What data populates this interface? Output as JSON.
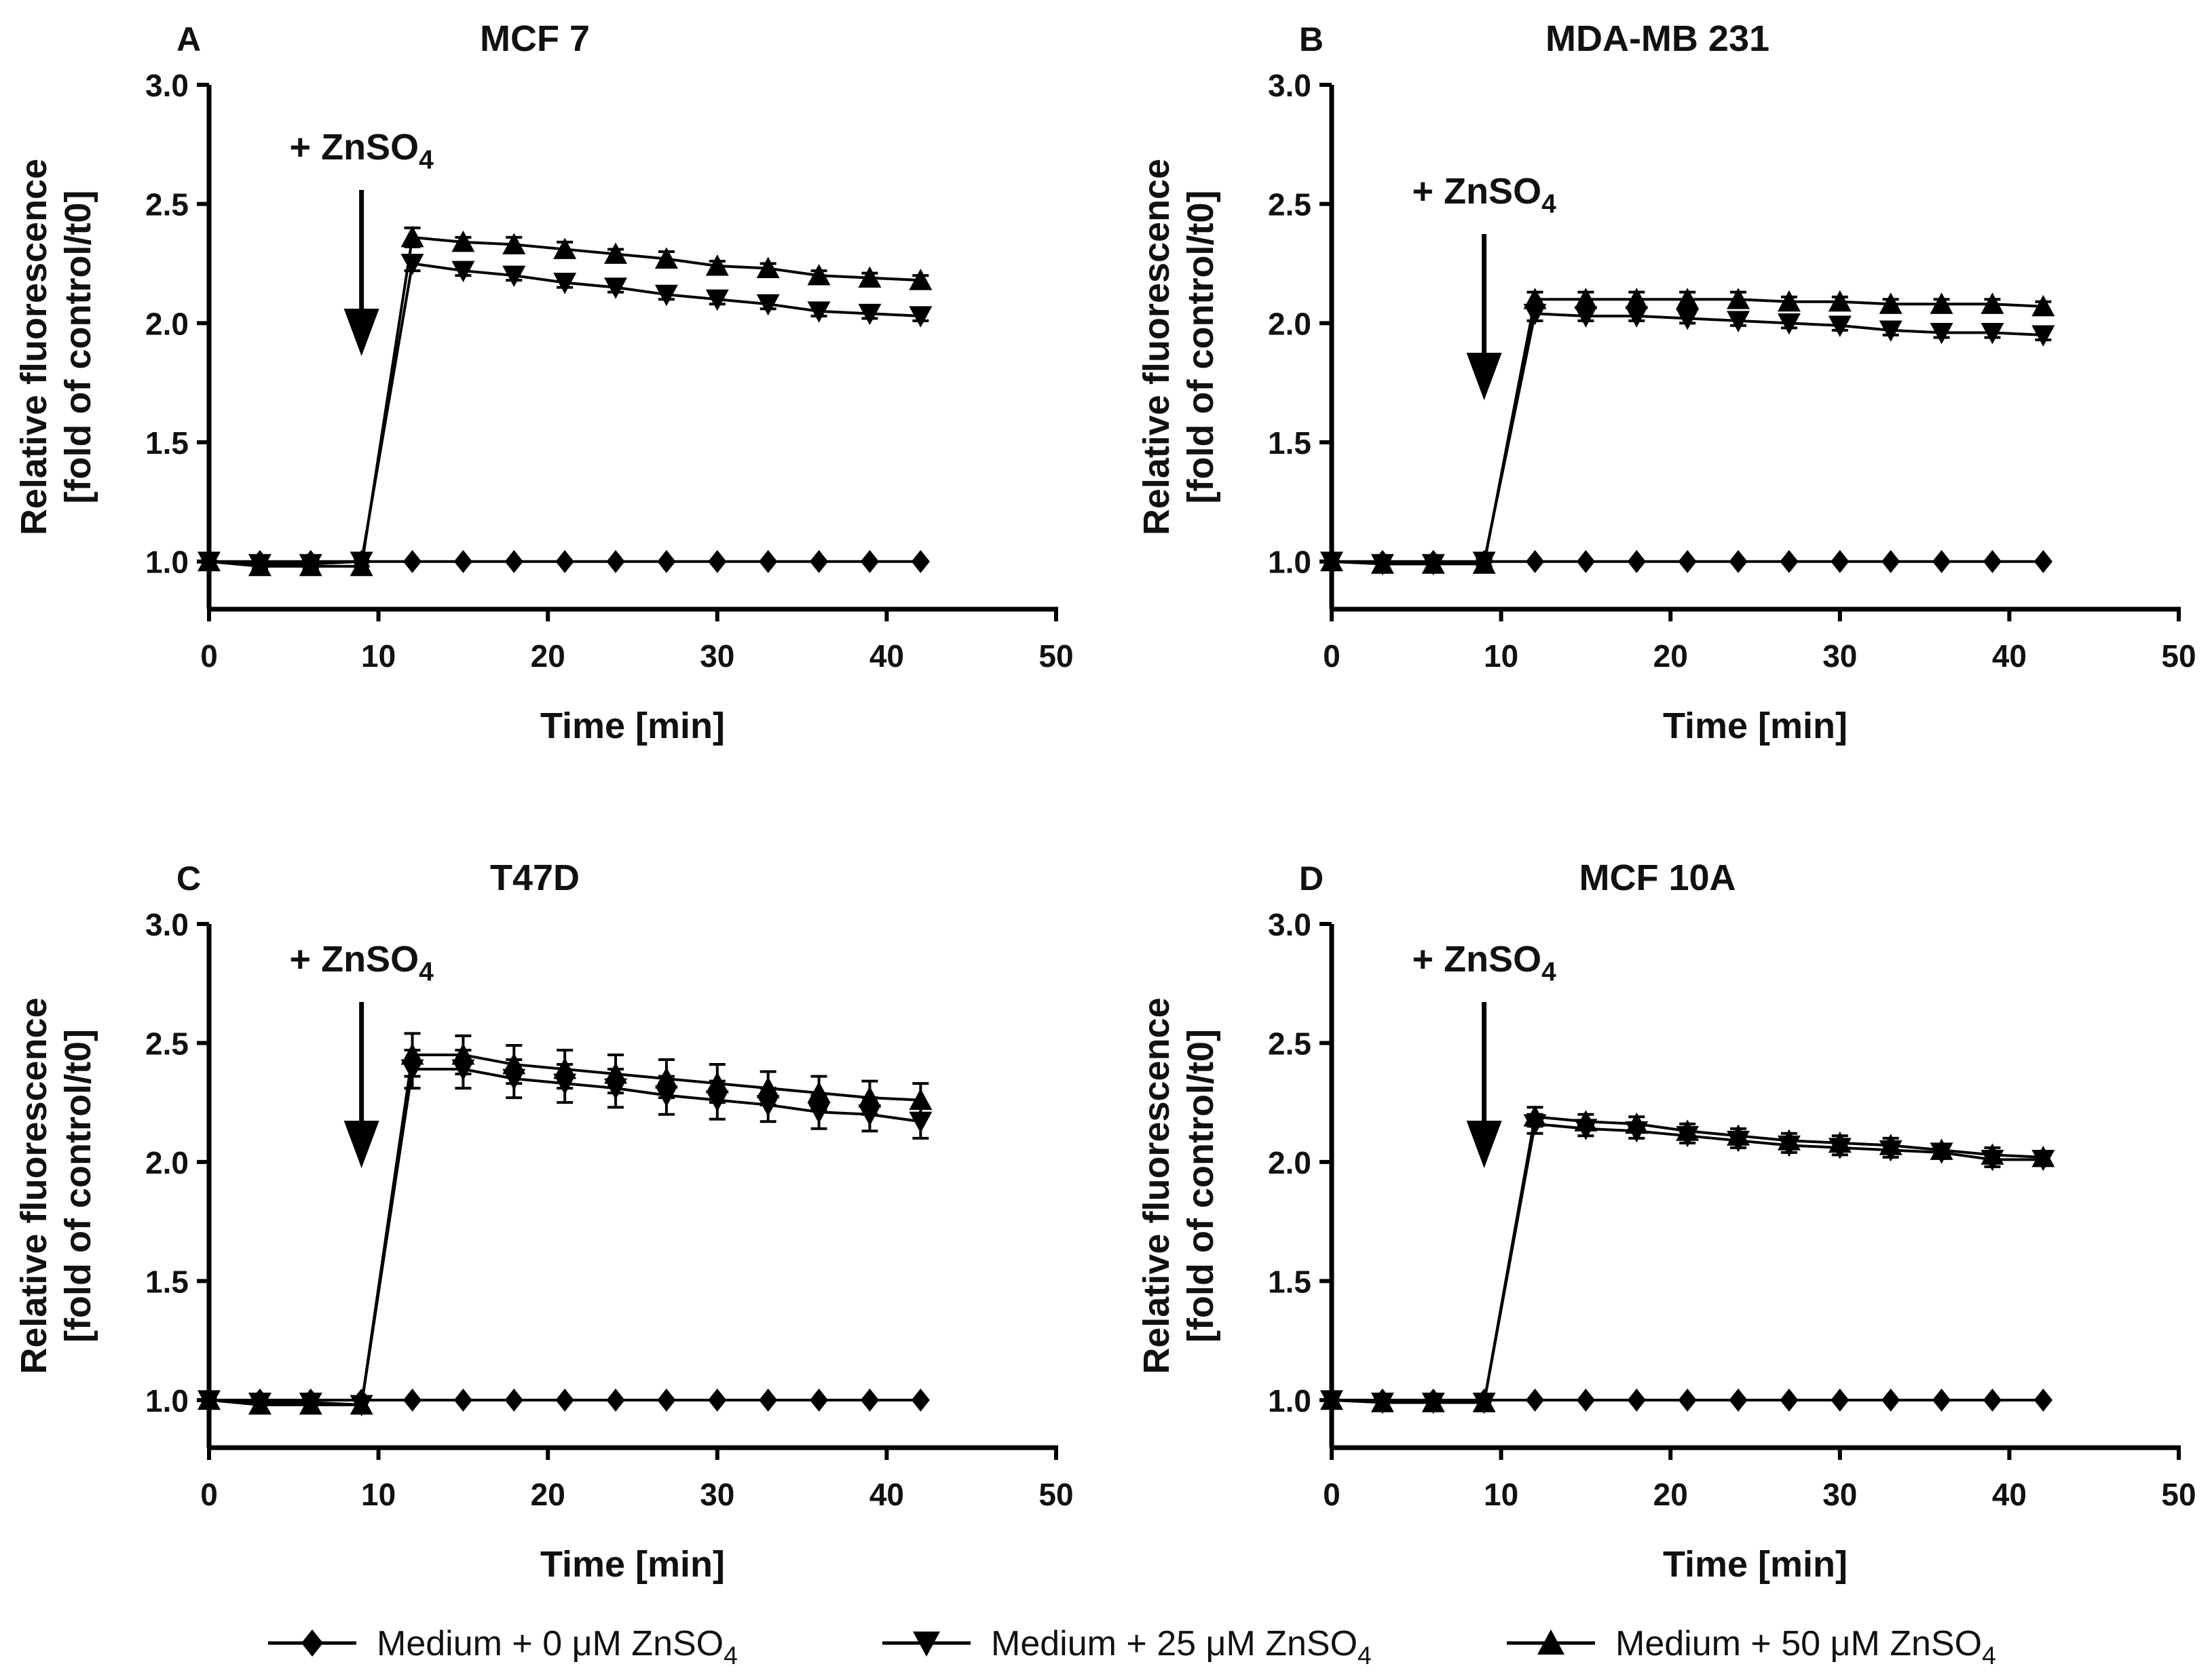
{
  "figure": {
    "time_points": [
      0,
      3,
      6,
      9,
      12,
      15,
      18,
      21,
      24,
      27,
      30,
      33,
      36,
      39,
      42
    ],
    "legend": [
      {
        "label": "Medium + 0 μM ZnSO",
        "sub": "4",
        "marker": "diamond"
      },
      {
        "label": "Medium + 25 μM ZnSO",
        "sub": "4",
        "marker": "triangle-down"
      },
      {
        "label": "Medium + 50 μM ZnSO",
        "sub": "4",
        "marker": "triangle-up"
      }
    ]
  },
  "chart_data": [
    {
      "type": "line",
      "panel": "A",
      "title": "MCF 7",
      "xlabel": "Time [min]",
      "ylabel_line1": "Relative fluorescence",
      "ylabel_line2": "[fold of control/t0]",
      "xlim": [
        0,
        50
      ],
      "ylim": [
        0.8,
        3.0
      ],
      "xticks": [
        "0",
        "10",
        "20",
        "30",
        "40",
        "50"
      ],
      "yticks": [
        "1.0",
        "1.5",
        "2.0",
        "2.5",
        "3.0"
      ],
      "annotation": {
        "text": "+ ZnSO",
        "sub": "4",
        "x": 9
      },
      "series": [
        {
          "name": "Medium + 0 μM ZnSO4",
          "marker": "diamond",
          "values": [
            1.0,
            1.0,
            1.0,
            1.0,
            1.0,
            1.0,
            1.0,
            1.0,
            1.0,
            1.0,
            1.0,
            1.0,
            1.0,
            1.0,
            1.0
          ],
          "errors": [
            0,
            0,
            0,
            0,
            0,
            0,
            0,
            0,
            0,
            0,
            0,
            0,
            0,
            0,
            0
          ]
        },
        {
          "name": "Medium + 25 μM ZnSO4",
          "marker": "triangle-down",
          "values": [
            1.0,
            0.99,
            0.99,
            1.0,
            2.25,
            2.22,
            2.2,
            2.17,
            2.15,
            2.12,
            2.1,
            2.08,
            2.05,
            2.04,
            2.03
          ],
          "errors": [
            0,
            0.02,
            0.02,
            0.02,
            0.03,
            0.02,
            0.02,
            0.02,
            0.02,
            0.02,
            0.02,
            0.02,
            0.02,
            0.02,
            0.02
          ]
        },
        {
          "name": "Medium + 50 μM ZnSO4",
          "marker": "triangle-up",
          "values": [
            1.0,
            0.98,
            0.98,
            0.98,
            2.36,
            2.34,
            2.33,
            2.31,
            2.29,
            2.27,
            2.24,
            2.23,
            2.2,
            2.19,
            2.18
          ],
          "errors": [
            0,
            0.02,
            0.02,
            0.02,
            0.04,
            0.02,
            0.03,
            0.03,
            0.02,
            0.03,
            0.02,
            0.02,
            0.02,
            0.02,
            0.02
          ]
        }
      ]
    },
    {
      "type": "line",
      "panel": "B",
      "title": "MDA-MB 231",
      "xlabel": "Time [min]",
      "ylabel_line1": "Relative fluorescence",
      "ylabel_line2": "[fold of control/t0]",
      "xlim": [
        0,
        50
      ],
      "ylim": [
        0.8,
        3.0
      ],
      "xticks": [
        "0",
        "10",
        "20",
        "30",
        "40",
        "50"
      ],
      "yticks": [
        "1.0",
        "1.5",
        "2.0",
        "2.5",
        "3.0"
      ],
      "annotation": {
        "text": "+ ZnSO",
        "sub": "4",
        "x": 9
      },
      "series": [
        {
          "name": "Medium + 0 μM ZnSO4",
          "marker": "diamond",
          "values": [
            1.0,
            1.0,
            1.0,
            1.0,
            1.0,
            1.0,
            1.0,
            1.0,
            1.0,
            1.0,
            1.0,
            1.0,
            1.0,
            1.0,
            1.0
          ],
          "errors": [
            0,
            0,
            0,
            0,
            0,
            0,
            0,
            0,
            0,
            0,
            0,
            0,
            0,
            0,
            0
          ]
        },
        {
          "name": "Medium + 25 μM ZnSO4",
          "marker": "triangle-down",
          "values": [
            1.0,
            0.99,
            0.99,
            1.0,
            2.04,
            2.03,
            2.03,
            2.02,
            2.01,
            2.0,
            1.99,
            1.97,
            1.96,
            1.96,
            1.95
          ],
          "errors": [
            0,
            0.02,
            0.02,
            0.02,
            0.03,
            0.02,
            0.02,
            0.02,
            0.02,
            0.02,
            0.02,
            0.02,
            0.02,
            0.02,
            0.02
          ]
        },
        {
          "name": "Medium + 50 μM ZnSO4",
          "marker": "triangle-up",
          "values": [
            1.0,
            0.99,
            0.99,
            0.99,
            2.1,
            2.1,
            2.1,
            2.1,
            2.1,
            2.09,
            2.09,
            2.08,
            2.08,
            2.08,
            2.07
          ],
          "errors": [
            0,
            0.02,
            0.02,
            0.02,
            0.03,
            0.03,
            0.03,
            0.03,
            0.03,
            0.02,
            0.02,
            0.02,
            0.02,
            0.02,
            0.02
          ]
        }
      ]
    },
    {
      "type": "line",
      "panel": "C",
      "title": "T47D",
      "xlabel": "Time [min]",
      "ylabel_line1": "Relative fluorescence",
      "ylabel_line2": "[fold of control/t0]",
      "xlim": [
        0,
        50
      ],
      "ylim": [
        0.8,
        3.0
      ],
      "xticks": [
        "0",
        "10",
        "20",
        "30",
        "40",
        "50"
      ],
      "yticks": [
        "1.0",
        "1.5",
        "2.0",
        "2.5",
        "3.0"
      ],
      "annotation": {
        "text": "+ ZnSO",
        "sub": "4",
        "x": 9
      },
      "series": [
        {
          "name": "Medium + 0 μM ZnSO4",
          "marker": "diamond",
          "values": [
            1.0,
            1.0,
            1.0,
            1.0,
            1.0,
            1.0,
            1.0,
            1.0,
            1.0,
            1.0,
            1.0,
            1.0,
            1.0,
            1.0,
            1.0
          ],
          "errors": [
            0,
            0,
            0,
            0,
            0,
            0,
            0,
            0,
            0,
            0,
            0,
            0,
            0,
            0,
            0
          ]
        },
        {
          "name": "Medium + 25 μM ZnSO4",
          "marker": "triangle-down",
          "values": [
            1.0,
            0.99,
            0.99,
            0.98,
            2.39,
            2.39,
            2.35,
            2.33,
            2.31,
            2.28,
            2.26,
            2.24,
            2.21,
            2.2,
            2.17
          ],
          "errors": [
            0,
            0.03,
            0.03,
            0.03,
            0.08,
            0.08,
            0.08,
            0.08,
            0.08,
            0.08,
            0.08,
            0.07,
            0.07,
            0.07,
            0.07
          ]
        },
        {
          "name": "Medium + 50 μM ZnSO4",
          "marker": "triangle-up",
          "values": [
            1.0,
            0.98,
            0.98,
            0.98,
            2.45,
            2.45,
            2.41,
            2.39,
            2.37,
            2.35,
            2.33,
            2.31,
            2.29,
            2.27,
            2.26
          ],
          "errors": [
            0,
            0.03,
            0.03,
            0.03,
            0.09,
            0.08,
            0.08,
            0.08,
            0.08,
            0.08,
            0.08,
            0.07,
            0.07,
            0.07,
            0.07
          ]
        }
      ]
    },
    {
      "type": "line",
      "panel": "D",
      "title": "MCF 10A",
      "xlabel": "Time [min]",
      "ylabel_line1": "Relative fluorescence",
      "ylabel_line2": "[fold of control/t0]",
      "xlim": [
        0,
        50
      ],
      "ylim": [
        0.8,
        3.0
      ],
      "xticks": [
        "0",
        "10",
        "20",
        "30",
        "40",
        "50"
      ],
      "yticks": [
        "1.0",
        "1.5",
        "2.0",
        "2.5",
        "3.0"
      ],
      "annotation": {
        "text": "+ ZnSO",
        "sub": "4",
        "x": 9
      },
      "series": [
        {
          "name": "Medium + 0 μM ZnSO4",
          "marker": "diamond",
          "values": [
            1.0,
            1.0,
            1.0,
            1.0,
            1.0,
            1.0,
            1.0,
            1.0,
            1.0,
            1.0,
            1.0,
            1.0,
            1.0,
            1.0,
            1.0
          ],
          "errors": [
            0,
            0,
            0,
            0,
            0,
            0,
            0,
            0,
            0,
            0,
            0,
            0,
            0,
            0,
            0
          ]
        },
        {
          "name": "Medium + 25 μM ZnSO4",
          "marker": "triangle-down",
          "values": [
            1.0,
            0.99,
            0.99,
            0.99,
            2.16,
            2.14,
            2.13,
            2.11,
            2.09,
            2.07,
            2.06,
            2.05,
            2.04,
            2.01,
            2.01
          ],
          "errors": [
            0,
            0.02,
            0.02,
            0.03,
            0.04,
            0.03,
            0.03,
            0.03,
            0.03,
            0.03,
            0.03,
            0.03,
            0.02,
            0.03,
            0.02
          ]
        },
        {
          "name": "Medium + 50 μM ZnSO4",
          "marker": "triangle-up",
          "values": [
            1.0,
            0.99,
            0.99,
            0.99,
            2.19,
            2.17,
            2.16,
            2.13,
            2.11,
            2.09,
            2.08,
            2.07,
            2.05,
            2.03,
            2.02
          ],
          "errors": [
            0,
            0.02,
            0.02,
            0.03,
            0.04,
            0.03,
            0.03,
            0.03,
            0.03,
            0.03,
            0.03,
            0.03,
            0.02,
            0.03,
            0.02
          ]
        }
      ]
    }
  ]
}
